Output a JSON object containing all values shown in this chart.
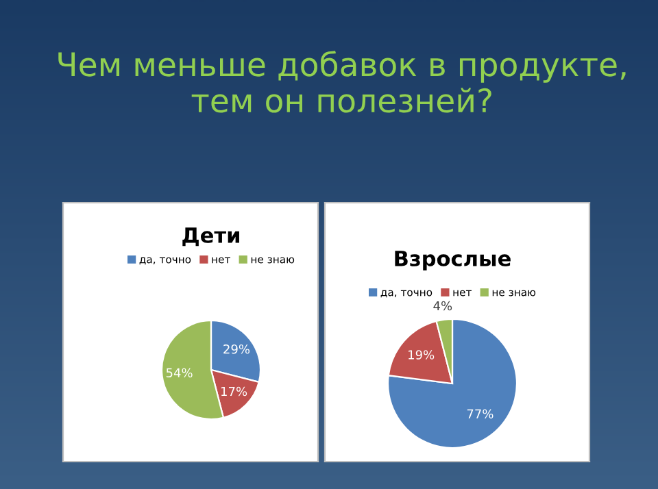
{
  "chart_data": [
    {
      "type": "pie",
      "title": "Дети",
      "annotations": [
        "Чем меньше добавок в продукте, тем он полезней?"
      ],
      "categories": [
        "да, точно",
        "нет",
        "не знаю"
      ],
      "values": [
        29,
        17,
        54
      ],
      "colors": [
        "#4f81bd",
        "#c0504d",
        "#9bbb59"
      ],
      "value_labels": [
        "29%",
        "17%",
        "54%"
      ],
      "legend": "top"
    },
    {
      "type": "pie",
      "title": "Взрослые",
      "categories": [
        "да, точно",
        "нет",
        "не знаю"
      ],
      "values": [
        77,
        19,
        4
      ],
      "colors": [
        "#4f81bd",
        "#c0504d",
        "#9bbb59"
      ],
      "value_labels": [
        "77%",
        "19%",
        "4%"
      ],
      "legend": "top"
    }
  ]
}
